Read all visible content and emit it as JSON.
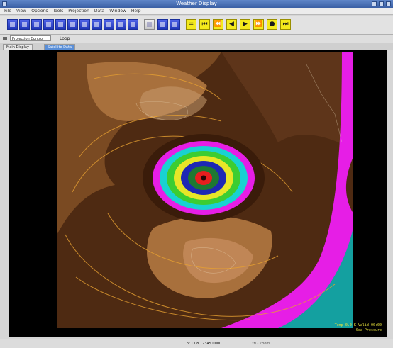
{
  "window": {
    "title": "Weather Display"
  },
  "menu": {
    "items": [
      "File",
      "View",
      "Options",
      "Tools",
      "Projection",
      "Data",
      "Window",
      "Help"
    ]
  },
  "toolbar": {
    "tools": [
      {
        "icon": "globe-icon"
      },
      {
        "icon": "zoom-in-icon"
      },
      {
        "icon": "zoom-out-icon"
      },
      {
        "icon": "pan-icon"
      },
      {
        "icon": "layers-icon"
      },
      {
        "icon": "image-icon"
      },
      {
        "icon": "grid-icon"
      },
      {
        "icon": "map-icon"
      },
      {
        "icon": "print-icon"
      },
      {
        "icon": "save-icon"
      },
      {
        "icon": "settings-icon"
      },
      {
        "icon": "clone-icon"
      }
    ],
    "animation": [
      {
        "icon": "loop-icon",
        "glyph": "="
      },
      {
        "icon": "first-frame-icon",
        "glyph": "⏮"
      },
      {
        "icon": "step-back-icon",
        "glyph": "⏪"
      },
      {
        "icon": "play-reverse-icon",
        "glyph": "◀"
      },
      {
        "icon": "play-icon",
        "glyph": "▶"
      },
      {
        "icon": "step-forward-icon",
        "glyph": "⏩"
      },
      {
        "icon": "stop-icon",
        "glyph": "●"
      },
      {
        "icon": "last-frame-icon",
        "glyph": "⏭"
      }
    ]
  },
  "options": {
    "combo_value": "Projection Control",
    "loop_label": "Loop"
  },
  "tabs": [
    {
      "label": "Main Display"
    },
    {
      "label": "Satellite Data"
    }
  ],
  "map": {
    "colors": {
      "ring_magenta": "#e61ee6",
      "ring_cyan": "#19d2d2",
      "ring_green": "#3ccd32",
      "ring_yellow": "#e8e628",
      "ring_blue": "#1e28b4",
      "ring_darkgreen": "#1e7832",
      "ring_red": "#e61e1e",
      "land_dark": "#4e2a12",
      "land_mid": "#7a4a22",
      "land_light": "#a8703c",
      "ocean_teal": "#14a0a0",
      "contour": "#e6a032"
    }
  },
  "readout": {
    "line1": "Temp 0.0 K  Valid 00:00",
    "line2": "Sea Pressure"
  },
  "status": {
    "frame": "1 of 1  08 12345 0000",
    "hint": "Ctrl - Zoom"
  }
}
